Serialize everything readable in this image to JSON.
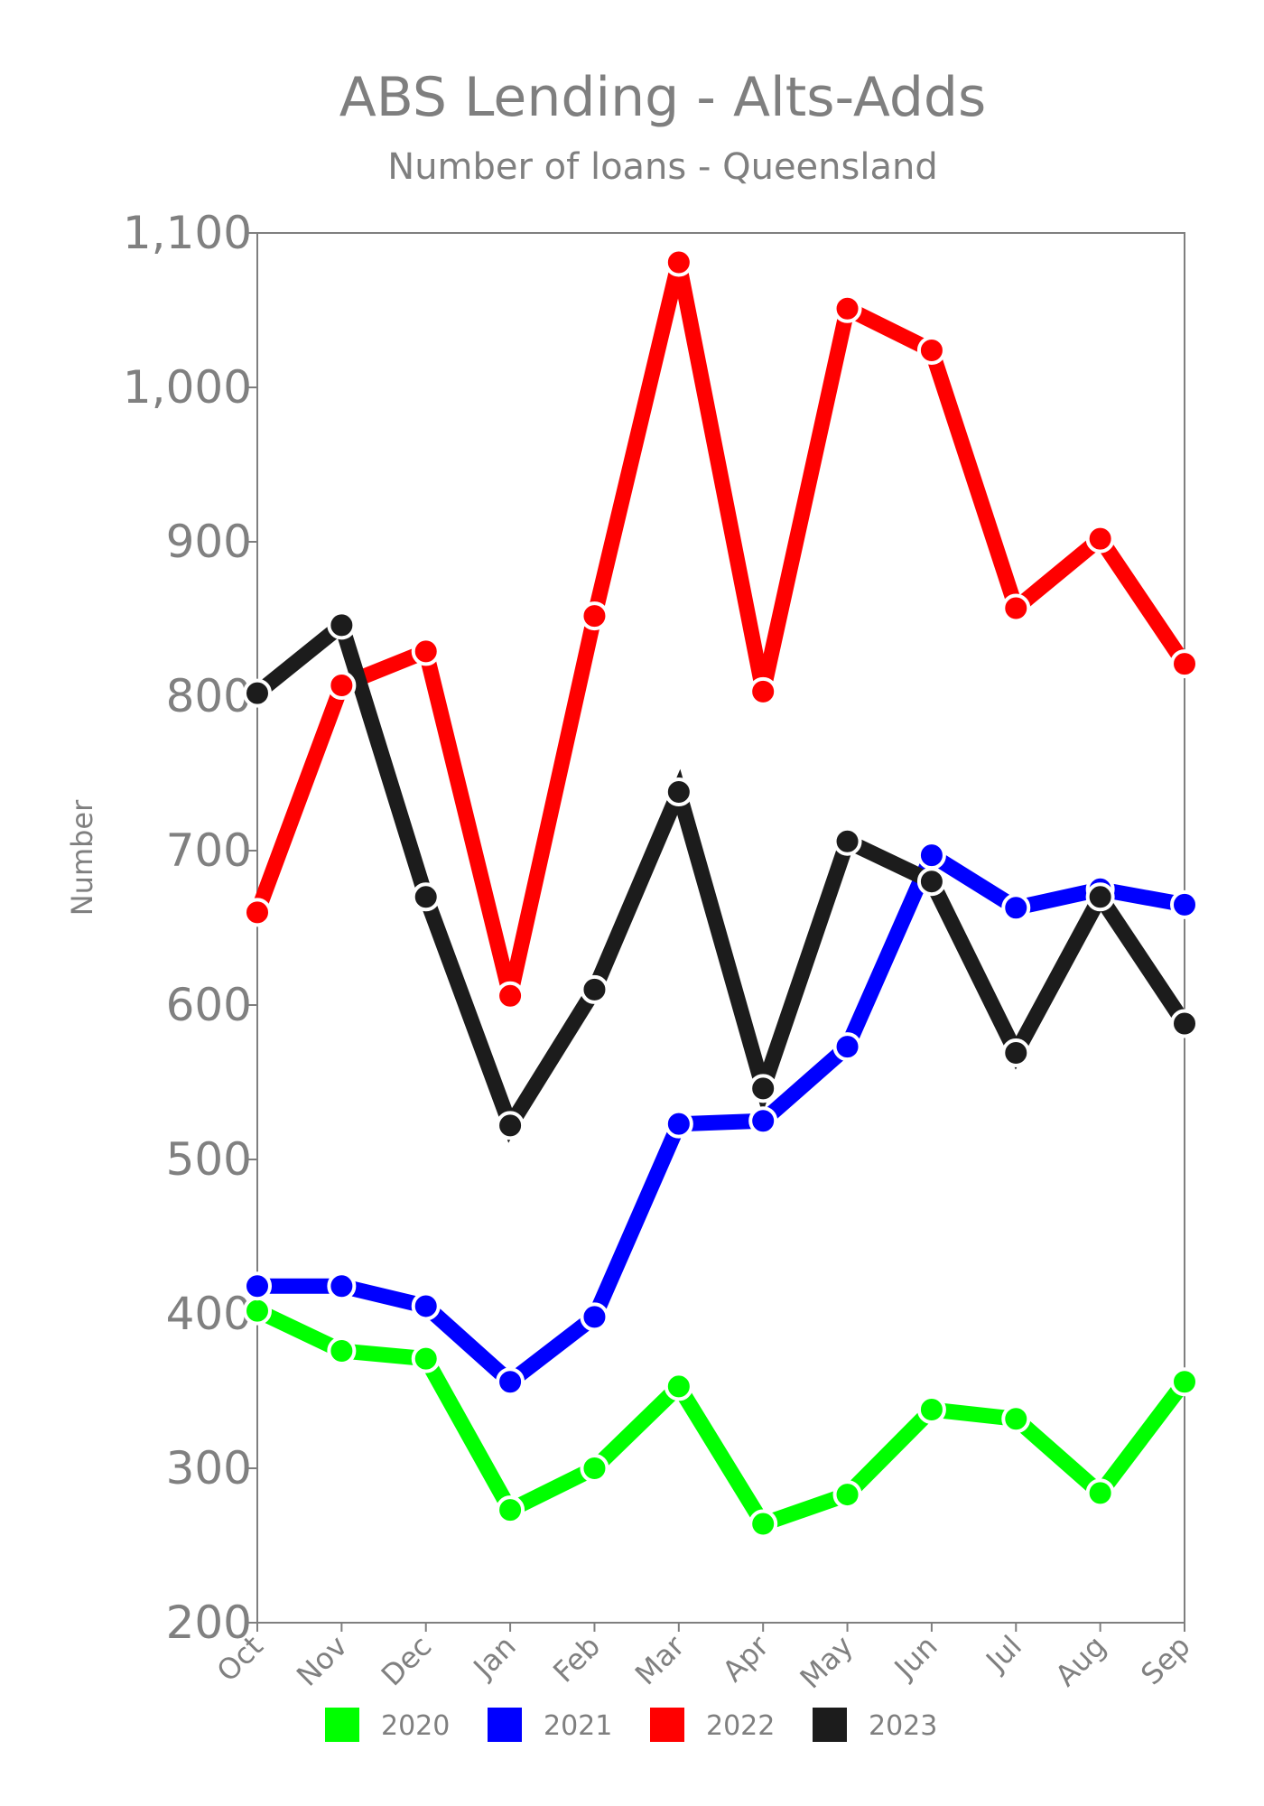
{
  "chart_data": {
    "type": "line",
    "title": "ABS Lending - Alts-Adds",
    "subtitle": "Number of loans - Queensland",
    "ylabel": "Number",
    "xlabel": "",
    "categories": [
      "Oct",
      "Nov",
      "Dec",
      "Jan",
      "Feb",
      "Mar",
      "Apr",
      "May",
      "Jun",
      "Jul",
      "Aug",
      "Sep"
    ],
    "ylim": [
      200,
      1100
    ],
    "yticks": [
      200,
      300,
      400,
      500,
      600,
      700,
      800,
      900,
      1000,
      1100
    ],
    "ytick_labels": [
      "200",
      "300",
      "400",
      "500",
      "600",
      "700",
      "800",
      "900",
      "1,000",
      "1,100"
    ],
    "grid": false,
    "legend_position": "bottom",
    "series": [
      {
        "name": "2020",
        "color": "#00ff00",
        "values": [
          402,
          376,
          371,
          273,
          300,
          353,
          264,
          283,
          338,
          332,
          284,
          356
        ]
      },
      {
        "name": "2021",
        "color": "#0000ff",
        "values": [
          418,
          418,
          405,
          356,
          398,
          523,
          525,
          573,
          697,
          663,
          675,
          665
        ]
      },
      {
        "name": "2022",
        "color": "#ff0000",
        "values": [
          660,
          807,
          829,
          606,
          852,
          1081,
          803,
          1051,
          1024,
          857,
          902,
          821
        ]
      },
      {
        "name": "2023",
        "color": "#1c1c1c",
        "values": [
          802,
          846,
          670,
          522,
          610,
          738,
          546,
          706,
          680,
          569,
          670,
          588
        ]
      }
    ]
  }
}
